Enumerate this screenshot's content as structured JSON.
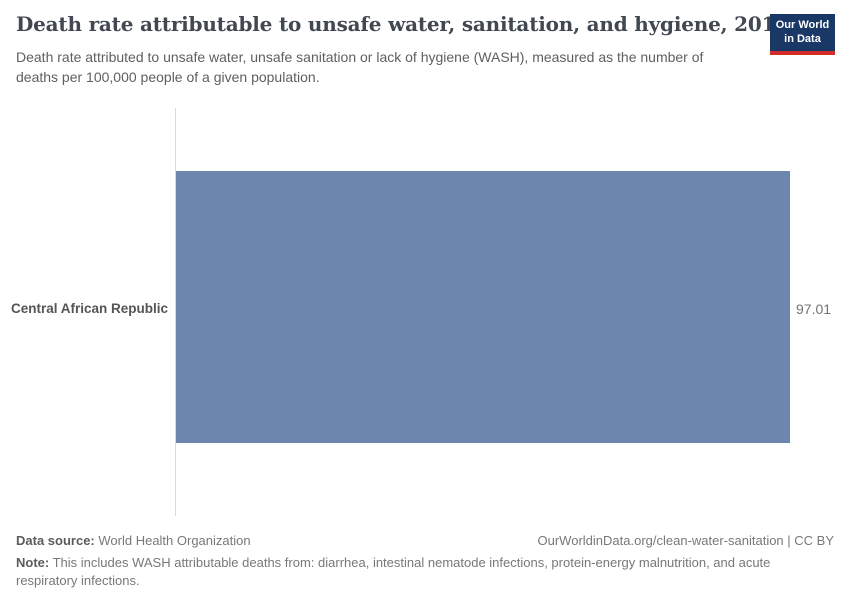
{
  "header": {
    "title": "Death rate attributable to unsafe water, sanitation, and hygiene, 2019",
    "subtitle": "Death rate attributed to unsafe water, unsafe sanitation or lack of hygiene (WASH), measured as the number of deaths per 100,000 people of a given population.",
    "logo_line1": "Our World",
    "logo_line2": "in Data"
  },
  "chart_data": {
    "type": "bar",
    "orientation": "horizontal",
    "title": "Death rate attributable to unsafe water, sanitation, and hygiene, 2019",
    "categories": [
      "Central African Republic"
    ],
    "values": [
      97.01
    ],
    "value_labels": [
      "97.01"
    ],
    "xlabel": "",
    "ylabel": "",
    "xlim": [
      0,
      97.01
    ],
    "grid": false,
    "legend": "none",
    "bar_color": "#6d86ad",
    "axis_line_color": "#dadada"
  },
  "footer": {
    "datasource_label": "Data source:",
    "datasource_value": "World Health Organization",
    "link": "OurWorldinData.org/clean-water-sanitation | CC BY",
    "note_label": "Note:",
    "note_text": "This includes WASH attributable deaths from: diarrhea, intestinal nematode infections, protein-energy malnutrition, and acute respiratory infections."
  },
  "colors": {
    "title": "#414851",
    "subtitle": "#5f5f5f",
    "logo_navy": "#1a3866",
    "logo_red": "#d42b2b",
    "bar": "#6d86ad",
    "text_gray": "#787878"
  }
}
